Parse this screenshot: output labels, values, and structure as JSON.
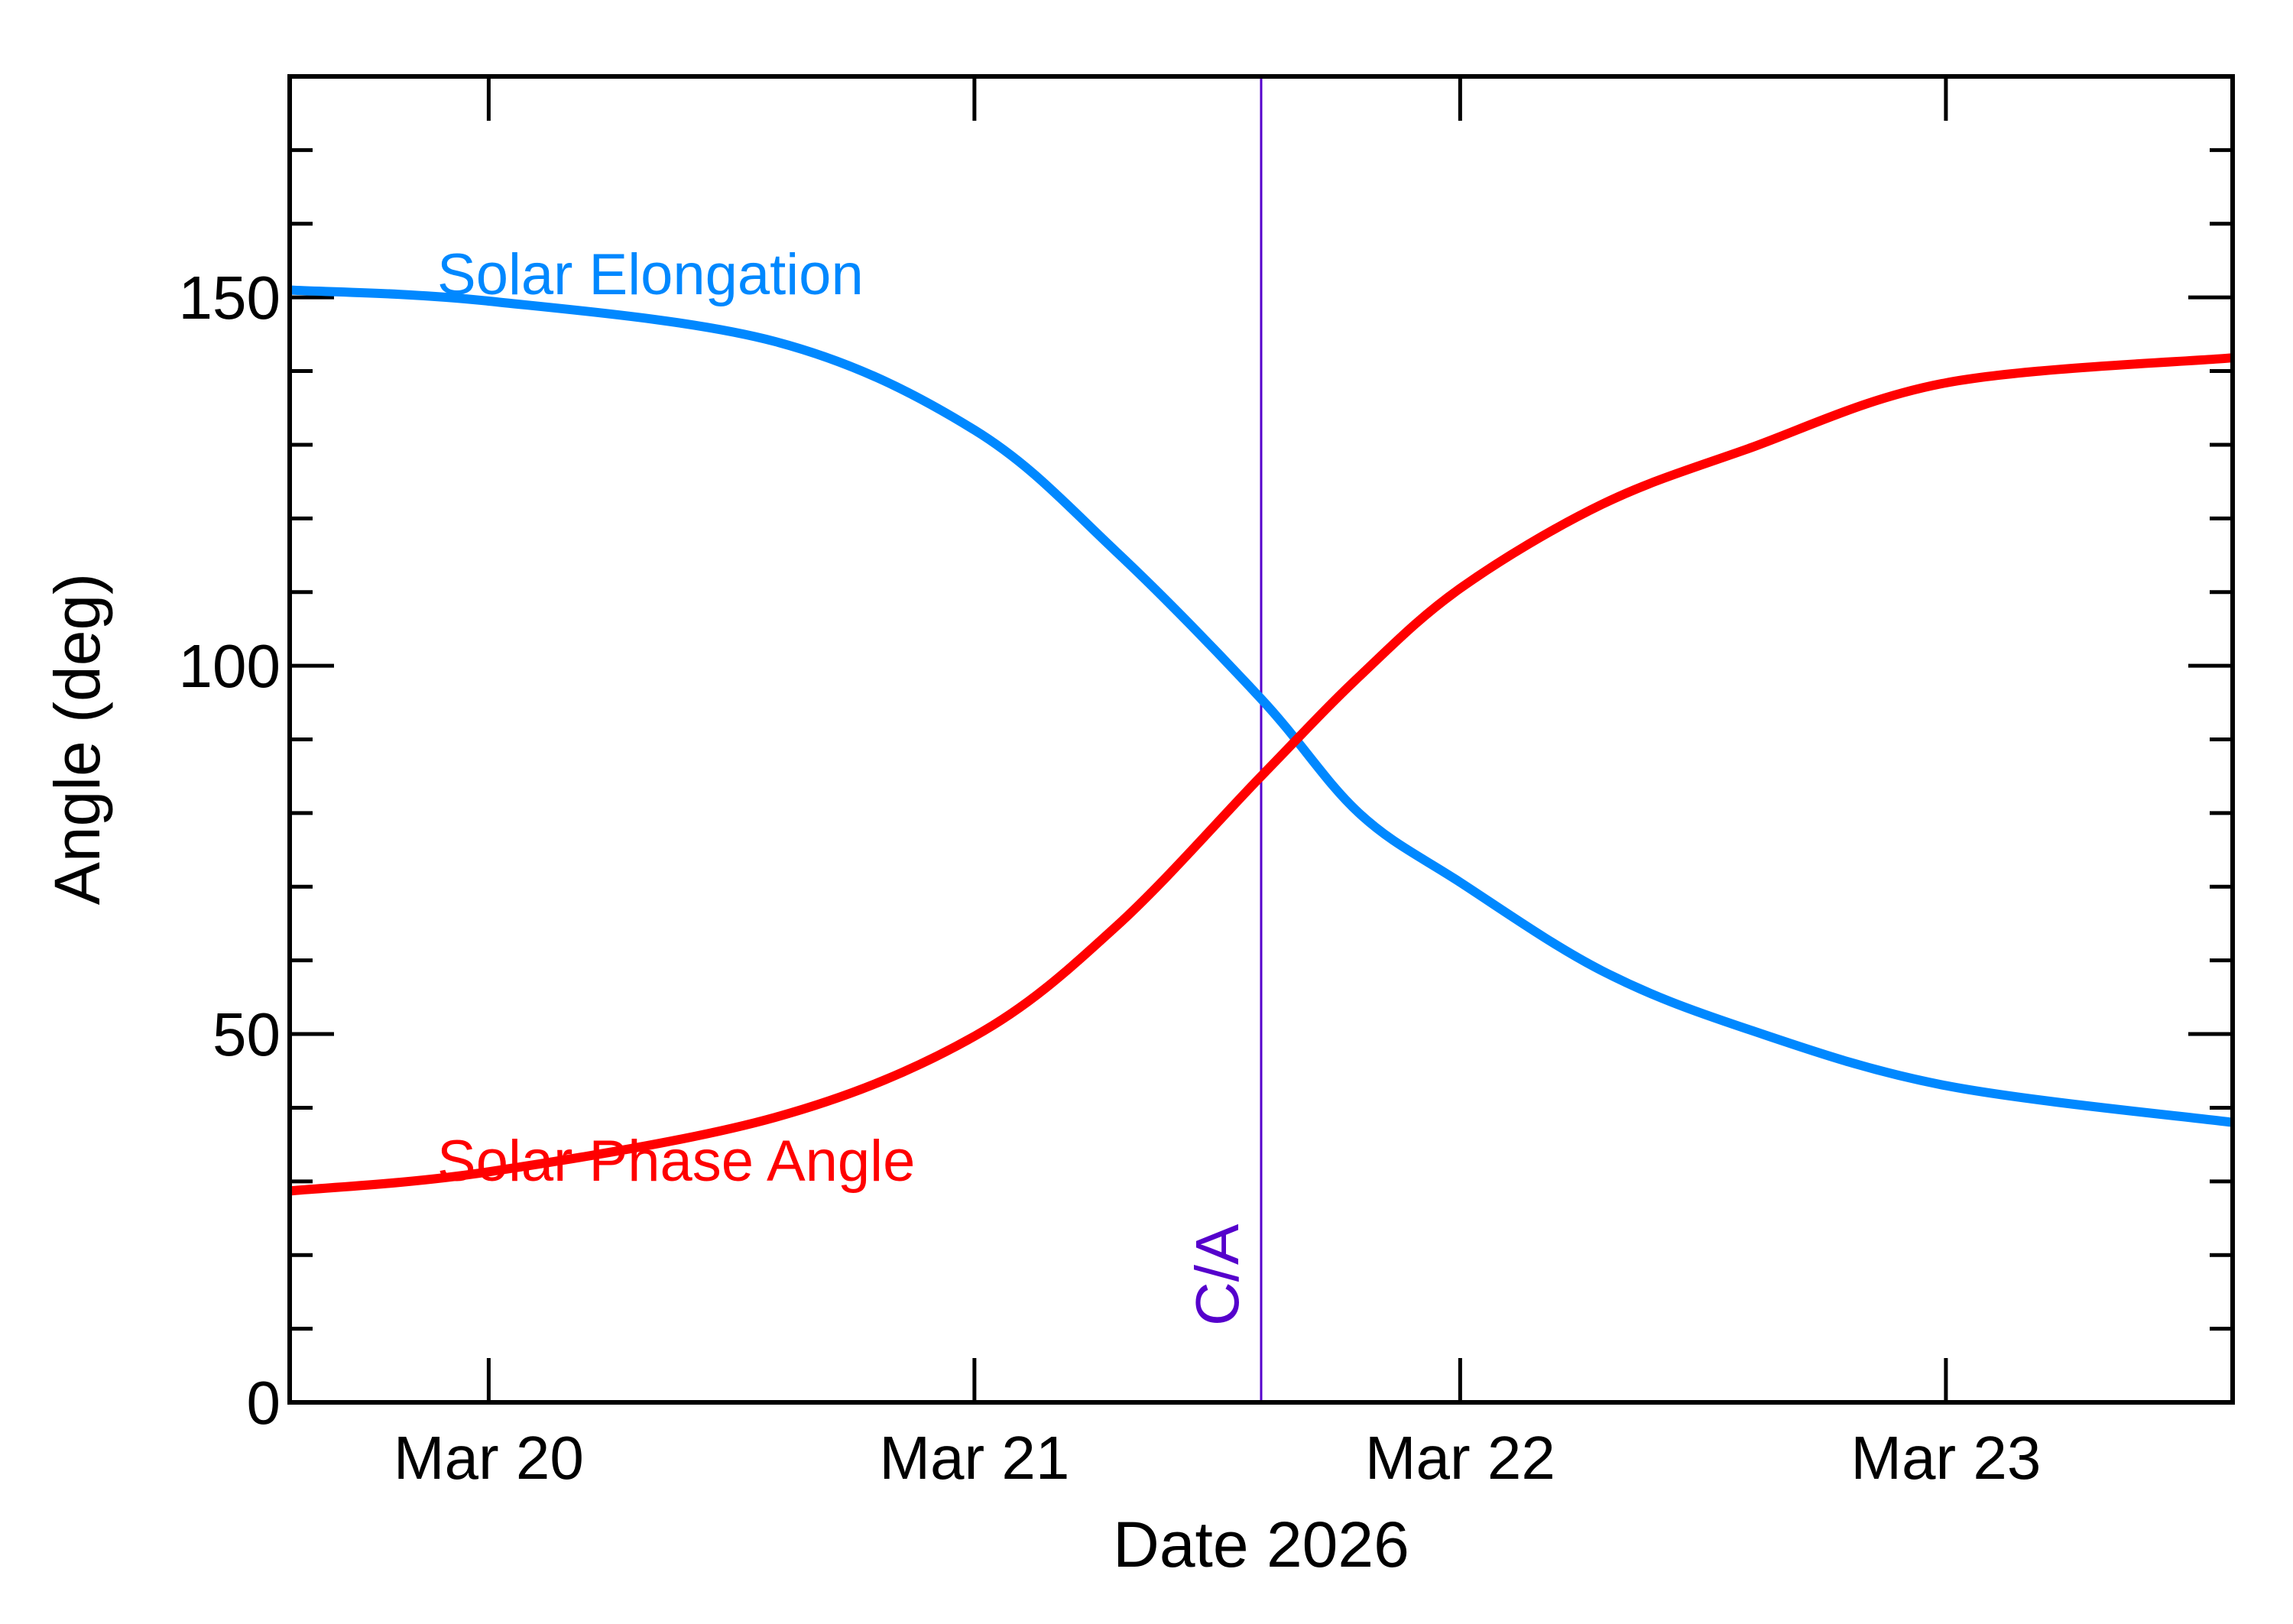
{
  "chart_data": {
    "type": "line",
    "xlabel": "Date 2026",
    "ylabel": "Angle (deg)",
    "xlim": [
      "2026-03-19T14:10",
      "2026-03-23T14:10"
    ],
    "ylim": [
      0,
      180
    ],
    "x_ticks": [
      {
        "date": "2026-03-20T00:00",
        "label": "Mar 20"
      },
      {
        "date": "2026-03-21T00:00",
        "label": "Mar 21"
      },
      {
        "date": "2026-03-22T00:00",
        "label": "Mar 22"
      },
      {
        "date": "2026-03-23T00:00",
        "label": "Mar 23"
      }
    ],
    "y_ticks": [
      0,
      50,
      100,
      150
    ],
    "y_minor_step": 10,
    "grid": false,
    "x": [
      "2026-03-19T14:10",
      "2026-03-20T00:00",
      "2026-03-20T14:10",
      "2026-03-21T00:00",
      "2026-03-21T07:00",
      "2026-03-21T14:10",
      "2026-03-21T19:00",
      "2026-03-22T00:00",
      "2026-03-22T07:00",
      "2026-03-22T14:10",
      "2026-03-23T00:00",
      "2026-03-23T14:10"
    ],
    "series": [
      {
        "name": "Solar Elongation",
        "color": "#0088ff",
        "values": [
          151,
          149.5,
          144,
          132,
          115.5,
          95.5,
          80,
          70.6,
          58.6,
          50.7,
          43,
          38
        ]
      },
      {
        "name": "Solar Phase Angle",
        "color": "#ff0000",
        "values": [
          28.7,
          31.3,
          38.7,
          49.7,
          64.6,
          85,
          98.5,
          110.5,
          121.9,
          129.4,
          138.4,
          141.8
        ]
      }
    ],
    "annotations": [
      {
        "type": "vline",
        "date": "2026-03-21T14:10",
        "label": "C/A",
        "color": "#5500cc"
      }
    ]
  }
}
